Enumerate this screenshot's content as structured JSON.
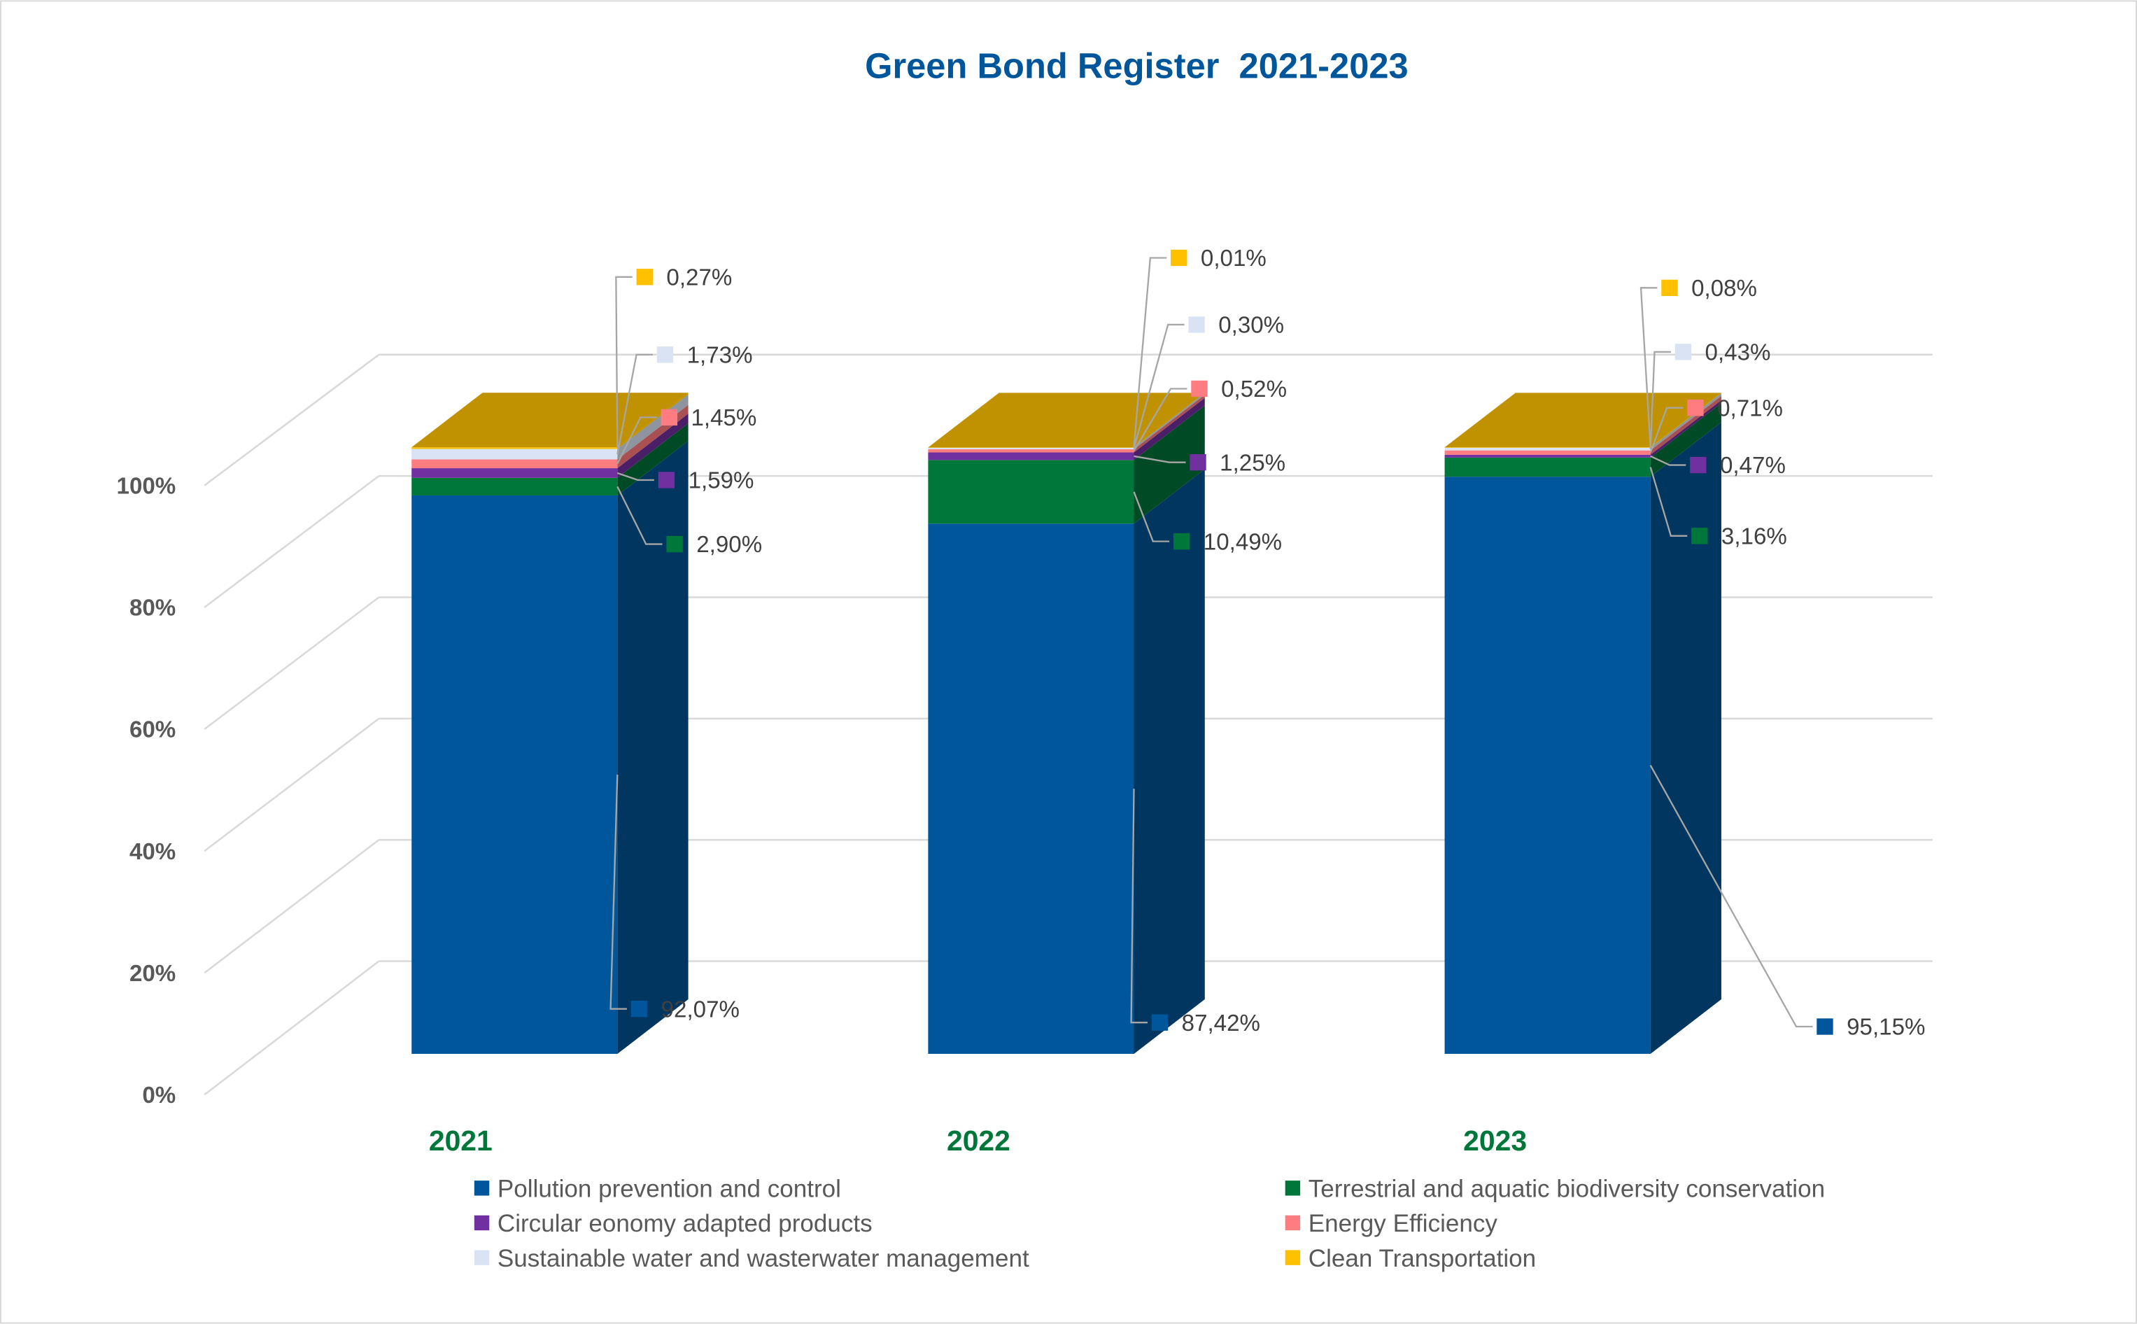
{
  "chart_data": {
    "type": "bar",
    "subtype": "stacked-percent-3d",
    "title": "Green Bond Register  2021-2023",
    "categories": [
      "2021",
      "2022",
      "2023"
    ],
    "ylim": [
      0,
      100
    ],
    "yticks": [
      "0%",
      "20%",
      "40%",
      "60%",
      "80%",
      "100%"
    ],
    "grid": true,
    "legend_position": "bottom",
    "series": [
      {
        "name": "Pollution prevention and control",
        "color": "#00569A",
        "values": [
          92.07,
          87.42,
          95.15
        ],
        "labels": [
          "92,07%",
          "87,42%",
          "95,15%"
        ]
      },
      {
        "name": "Terrestrial and aquatic biodiversity conservation",
        "color": "#00773A",
        "values": [
          2.9,
          10.49,
          3.16
        ],
        "labels": [
          "2,90%",
          "10,49%",
          "3,16%"
        ]
      },
      {
        "name": "Circular eonomy adapted products",
        "color": "#7030A0",
        "values": [
          1.59,
          1.25,
          0.47
        ],
        "labels": [
          "1,59%",
          "1,25%",
          "0,47%"
        ]
      },
      {
        "name": "Energy Efficiency",
        "color": "#FF7C80",
        "values": [
          1.45,
          0.52,
          0.71
        ],
        "labels": [
          "1,45%",
          "0,52%",
          "0,71%"
        ]
      },
      {
        "name": "Sustainable water and wasterwater management",
        "color": "#DAE3F3",
        "values": [
          1.73,
          0.3,
          0.43
        ],
        "labels": [
          "1,73%",
          "0,30%",
          "0,43%"
        ]
      },
      {
        "name": "Clean Transportation",
        "color": "#FFC000",
        "values": [
          0.27,
          0.01,
          0.08
        ],
        "labels": [
          "0,27%",
          "0,01%",
          "0,08%"
        ]
      }
    ],
    "legend_order": [
      0,
      1,
      2,
      3,
      4,
      5
    ]
  }
}
